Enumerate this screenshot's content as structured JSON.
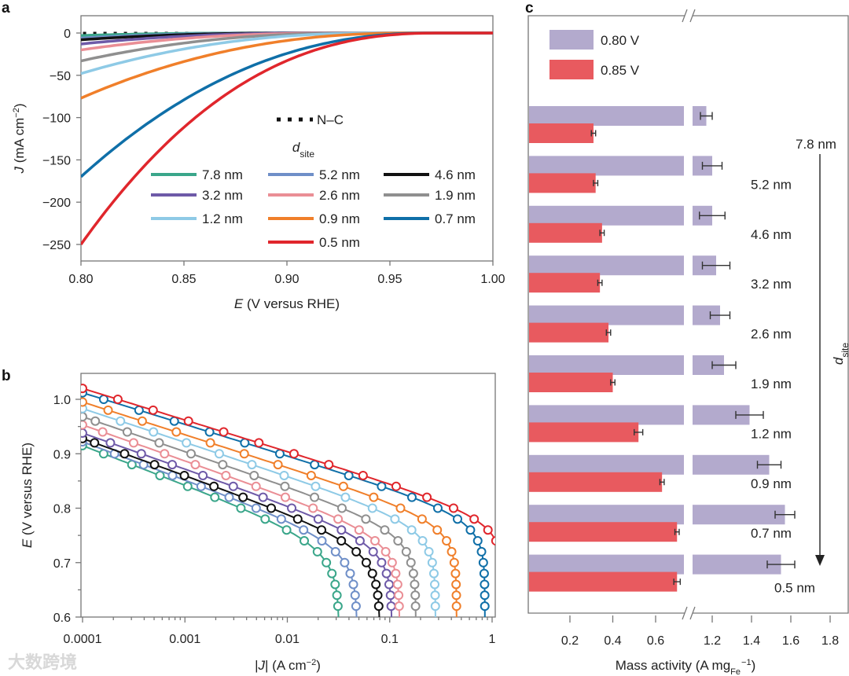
{
  "watermark": "大数跨境",
  "chart_data": [
    {
      "panel": "a",
      "type": "line",
      "xlabel": {
        "italic": "E",
        "rest": " (V versus RHE)"
      },
      "ylabel": {
        "italic": "J",
        "rest": " (mA cm",
        "sup": "−2",
        "close": ")"
      },
      "xlim": [
        0.8,
        1.0
      ],
      "ylim": [
        -270,
        20
      ],
      "xticks": [
        "0.80",
        "0.85",
        "0.90",
        "0.95",
        "1.00"
      ],
      "xtick_values": [
        0.8,
        0.85,
        0.9,
        0.95,
        1.0
      ],
      "yticks": [
        "0",
        "−50",
        "−100",
        "−150",
        "−200",
        "−250"
      ],
      "ytick_values": [
        0,
        -50,
        -100,
        -150,
        -200,
        -250
      ],
      "reference": {
        "name": "N–C",
        "color": "#111111",
        "j_at_080": -0.5,
        "end_E": 0.89
      },
      "legend_title": "d",
      "legend_title_sub": "site",
      "series": [
        {
          "name": "7.8 nm",
          "color": "#3aa68a",
          "j_at_080": -3,
          "onset_E": 0.885,
          "exponent": 2.2
        },
        {
          "name": "5.2 nm",
          "color": "#6f8fc8",
          "j_at_080": -6,
          "onset_E": 0.9,
          "exponent": 2.2
        },
        {
          "name": "4.6 nm",
          "color": "#111111",
          "j_at_080": -8,
          "onset_E": 0.905,
          "exponent": 2.2
        },
        {
          "name": "3.2 nm",
          "color": "#6e5aa8",
          "j_at_080": -13,
          "onset_E": 0.915,
          "exponent": 2.2
        },
        {
          "name": "2.6 nm",
          "color": "#ea8e95",
          "j_at_080": -20,
          "onset_E": 0.925,
          "exponent": 2.2
        },
        {
          "name": "1.9 nm",
          "color": "#8f8f8f",
          "j_at_080": -33,
          "onset_E": 0.935,
          "exponent": 2.2
        },
        {
          "name": "1.2 nm",
          "color": "#8ecae6",
          "j_at_080": -48,
          "onset_E": 0.945,
          "exponent": 2.2
        },
        {
          "name": "0.9 nm",
          "color": "#f07f2a",
          "j_at_080": -77,
          "onset_E": 0.96,
          "exponent": 2.2
        },
        {
          "name": "0.7 nm",
          "color": "#0f6fa8",
          "j_at_080": -170,
          "onset_E": 0.97,
          "exponent": 2.2
        },
        {
          "name": "0.5 nm",
          "color": "#e0262c",
          "j_at_080": -250,
          "onset_E": 0.975,
          "exponent": 2.4
        }
      ]
    },
    {
      "panel": "b",
      "type": "line",
      "xscale": "log",
      "xlabel": {
        "pre": "|",
        "italic": "J",
        "rest": "| (A cm",
        "sup": "−2",
        "close": ")"
      },
      "ylabel": {
        "italic": "E",
        "rest": " (V versus RHE)"
      },
      "xlim": [
        0.0001,
        1.06
      ],
      "ylim": [
        0.6,
        1.05
      ],
      "xticks": [
        "0.0001",
        "0.001",
        "0.01",
        "0.1",
        "1"
      ],
      "xtick_values": [
        0.0001,
        0.001,
        0.01,
        0.1,
        1
      ],
      "yticks": [
        "0.6",
        "0.7",
        "0.8",
        "0.9",
        "1.0"
      ],
      "ytick_values": [
        0.6,
        0.7,
        0.8,
        0.9,
        1.0
      ],
      "series": [
        {
          "name": "7.8 nm",
          "color": "#3aa68a",
          "E_at_1e-4": 0.915,
          "tafel_slope": 0.072,
          "limiting_J": 0.032
        },
        {
          "name": "5.2 nm",
          "color": "#6f8fc8",
          "E_at_1e-4": 0.922,
          "tafel_slope": 0.07,
          "limiting_J": 0.048
        },
        {
          "name": "4.6 nm",
          "color": "#111111",
          "E_at_1e-4": 0.928,
          "tafel_slope": 0.068,
          "limiting_J": 0.08
        },
        {
          "name": "3.2 nm",
          "color": "#6e5aa8",
          "E_at_1e-4": 0.938,
          "tafel_slope": 0.066,
          "limiting_J": 0.105
        },
        {
          "name": "2.6 nm",
          "color": "#ea8e95",
          "E_at_1e-4": 0.953,
          "tafel_slope": 0.066,
          "limiting_J": 0.125
        },
        {
          "name": "1.9 nm",
          "color": "#8f8f8f",
          "E_at_1e-4": 0.968,
          "tafel_slope": 0.064,
          "limiting_J": 0.18
        },
        {
          "name": "1.2 nm",
          "color": "#8ecae6",
          "E_at_1e-4": 0.983,
          "tafel_slope": 0.062,
          "limiting_J": 0.28
        },
        {
          "name": "0.9 nm",
          "color": "#f07f2a",
          "E_at_1e-4": 0.995,
          "tafel_slope": 0.06,
          "limiting_J": 0.45
        },
        {
          "name": "0.7 nm",
          "color": "#0f6fa8",
          "E_at_1e-4": 1.012,
          "tafel_slope": 0.058,
          "limiting_J": 0.85
        },
        {
          "name": "0.5 nm",
          "color": "#e0262c",
          "E_at_1e-4": 1.02,
          "tafel_slope": 0.058,
          "limiting_J": 1.3
        }
      ]
    },
    {
      "panel": "c",
      "type": "bar",
      "orientation": "horizontal",
      "axis_break": [
        0.75,
        1.1
      ],
      "xlabel": {
        "rest": "Mass activity (A mg",
        "sub": "Fe",
        "sup": "−1",
        "close": ")"
      },
      "xticks": [
        "0.2",
        "0.4",
        "0.6",
        "1.2",
        "1.4",
        "1.6",
        "1.8"
      ],
      "xtick_values": [
        0.2,
        0.4,
        0.6,
        1.2,
        1.4,
        1.6,
        1.8
      ],
      "arrow_label": "d",
      "arrow_label_sub": "site",
      "legend": [
        {
          "name": "0.80 V",
          "color": "#b3aacd"
        },
        {
          "name": "0.85 V",
          "color": "#e85a5f"
        }
      ],
      "categories": [
        "7.8 nm",
        "5.2 nm",
        "4.6 nm",
        "3.2 nm",
        "2.6 nm",
        "1.9 nm",
        "1.2 nm",
        "0.9 nm",
        "0.7 nm",
        "0.5 nm"
      ],
      "series": [
        {
          "name": "0.80 V",
          "values": [
            1.17,
            1.2,
            1.2,
            1.22,
            1.24,
            1.26,
            1.39,
            1.49,
            1.57,
            1.55
          ],
          "errors": [
            0.03,
            0.05,
            0.065,
            0.07,
            0.05,
            0.06,
            0.07,
            0.06,
            0.05,
            0.07
          ]
        },
        {
          "name": "0.85 V",
          "values": [
            0.31,
            0.32,
            0.35,
            0.34,
            0.38,
            0.4,
            0.52,
            0.63,
            0.7,
            0.7
          ],
          "errors": [
            0.01,
            0.01,
            0.01,
            0.01,
            0.01,
            0.01,
            0.02,
            0.01,
            0.01,
            0.015
          ]
        }
      ]
    }
  ]
}
